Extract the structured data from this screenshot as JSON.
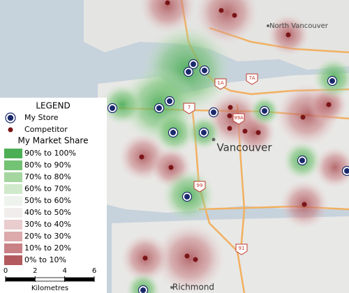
{
  "map": {
    "places": {
      "north_vancouver": "North Vancouver",
      "vancouver": "Vancouver",
      "richmond": "Richmond"
    },
    "routes": [
      "1A",
      "7A",
      "7",
      "99A",
      "99",
      "91"
    ]
  },
  "legend": {
    "title": "LEGEND",
    "store": "My Store",
    "competitor": "Competitor",
    "share_title": "My Market Share",
    "classes": [
      {
        "label": "90% to 100%",
        "color": "#4daf55"
      },
      {
        "label": "80% to 90%",
        "color": "#74c274"
      },
      {
        "label": "70% to 80%",
        "color": "#a5d6a0"
      },
      {
        "label": "60% to 70%",
        "color": "#cfe9ca"
      },
      {
        "label": "50% to 60%",
        "color": "#eef3ee"
      },
      {
        "label": "40% to 50%",
        "color": "#f1eded"
      },
      {
        "label": "30% to 40%",
        "color": "#e9cccd"
      },
      {
        "label": "20% to 30%",
        "color": "#dcaaab"
      },
      {
        "label": "10% to 20%",
        "color": "#c98185"
      },
      {
        "label": "0% to 10%",
        "color": "#b35a5f"
      }
    ],
    "scale": {
      "ticks": [
        0,
        2,
        4,
        6
      ],
      "unit": "Kilometres"
    }
  }
}
